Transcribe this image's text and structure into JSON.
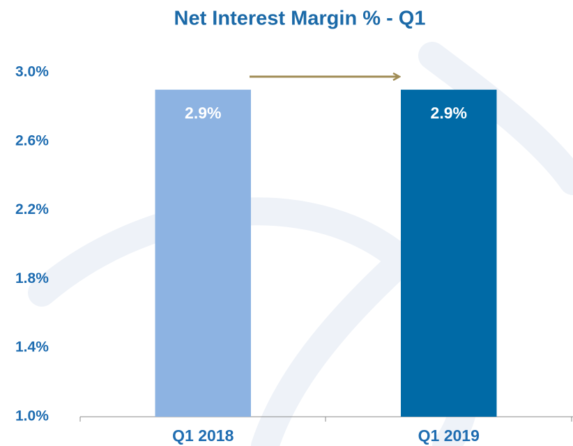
{
  "chart_data": {
    "type": "bar",
    "title": "Net Interest Margin % - Q1",
    "categories": [
      "Q1 2018",
      "Q1 2019"
    ],
    "values": [
      2.9,
      2.9
    ],
    "value_labels": [
      "2.9%",
      "2.9%"
    ],
    "colors": [
      "#8db3e2",
      "#006aa6"
    ],
    "ylim": [
      1.0,
      3.0
    ],
    "yticks": [
      {
        "value": 1.0,
        "label": "1.0%"
      },
      {
        "value": 1.4,
        "label": "1.4%"
      },
      {
        "value": 1.8,
        "label": "1.8%"
      },
      {
        "value": 2.2,
        "label": "2.2%"
      },
      {
        "value": 2.6,
        "label": "2.6%"
      },
      {
        "value": 3.0,
        "label": "3.0%"
      }
    ],
    "grid": false
  }
}
